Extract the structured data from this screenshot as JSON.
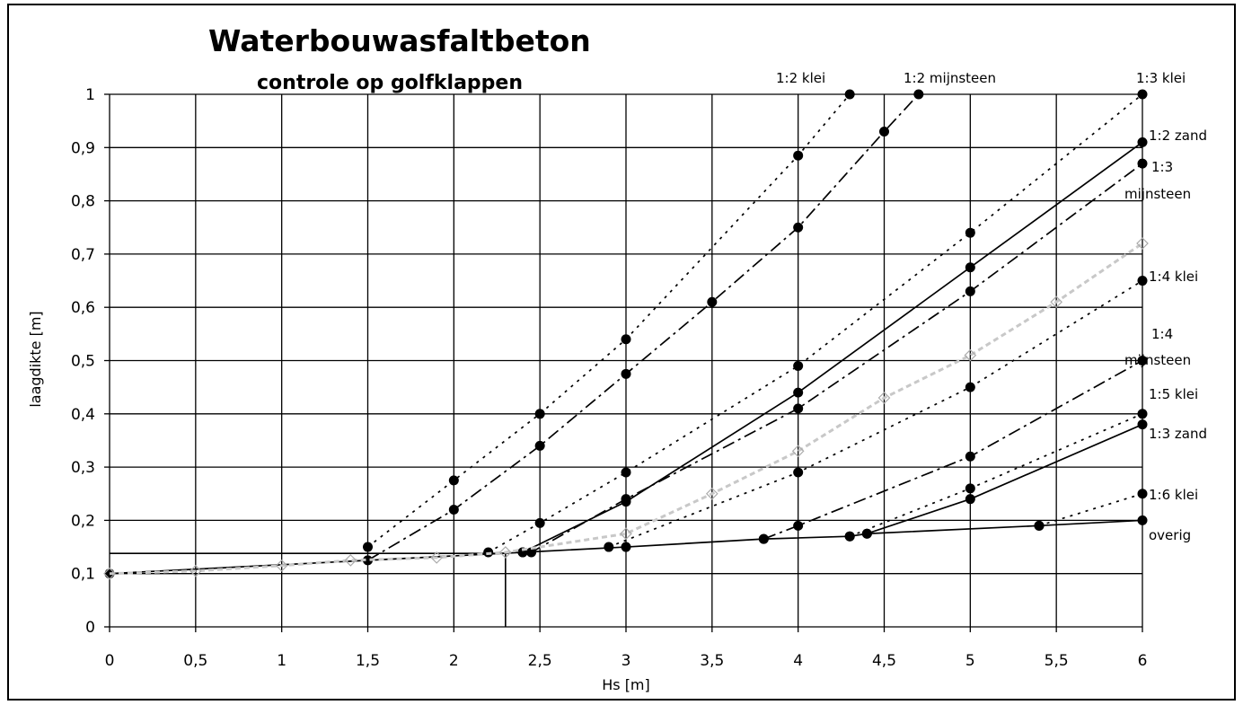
{
  "chart_data": {
    "type": "line",
    "title": "Waterbouwasfaltbeton",
    "subtitle": "controle op golfklappen",
    "xlabel": "Hs [m]",
    "ylabel": "laagdikte [m]",
    "xlim": [
      0,
      6
    ],
    "ylim": [
      0,
      1
    ],
    "x_ticks": [
      "0",
      "0,5",
      "1",
      "1,5",
      "2",
      "2,5",
      "3",
      "3,5",
      "4",
      "4,5",
      "5",
      "5,5",
      "6"
    ],
    "y_ticks": [
      "0",
      "0,1",
      "0,2",
      "0,3",
      "0,4",
      "0,5",
      "0,6",
      "0,7",
      "0,8",
      "0,9",
      "1"
    ],
    "grid": true,
    "series": [
      {
        "name": "1:2 klei",
        "style": "dotted",
        "points": [
          [
            1.5,
            0.15
          ],
          [
            2,
            0.275
          ],
          [
            2.5,
            0.4
          ],
          [
            3,
            0.54
          ],
          [
            4,
            0.885
          ],
          [
            4.3,
            1.0
          ]
        ]
      },
      {
        "name": "1:2 mijnsteen",
        "style": "dashdot",
        "points": [
          [
            1.5,
            0.125
          ],
          [
            2,
            0.22
          ],
          [
            2.5,
            0.34
          ],
          [
            3,
            0.475
          ],
          [
            3.5,
            0.61
          ],
          [
            4,
            0.75
          ],
          [
            4.5,
            0.93
          ],
          [
            4.7,
            1.0
          ]
        ]
      },
      {
        "name": "1:3 klei",
        "style": "dotted",
        "points": [
          [
            2.2,
            0.14
          ],
          [
            2.5,
            0.195
          ],
          [
            3,
            0.29
          ],
          [
            4,
            0.49
          ],
          [
            5,
            0.74
          ],
          [
            6,
            1.0
          ]
        ]
      },
      {
        "name": "1:2 zand",
        "style": "solid",
        "points": [
          [
            2.4,
            0.14
          ],
          [
            3,
            0.235
          ],
          [
            4,
            0.44
          ],
          [
            5,
            0.675
          ],
          [
            6,
            0.91
          ]
        ]
      },
      {
        "name": "1:3 mijnsteen",
        "style": "dashdot",
        "points": [
          [
            2.45,
            0.14
          ],
          [
            3,
            0.24
          ],
          [
            4,
            0.41
          ],
          [
            5,
            0.63
          ],
          [
            6,
            0.87
          ]
        ]
      },
      {
        "name": "1:4 klei",
        "style": "dotted",
        "points": [
          [
            2.9,
            0.15
          ],
          [
            4,
            0.29
          ],
          [
            5,
            0.45
          ],
          [
            6,
            0.65
          ]
        ]
      },
      {
        "name": "1:4 mijnsteen",
        "style": "dashdot",
        "points": [
          [
            3.8,
            0.165
          ],
          [
            4,
            0.19
          ],
          [
            5,
            0.32
          ],
          [
            6,
            0.5
          ]
        ]
      },
      {
        "name": "1:5 klei",
        "style": "dotted",
        "points": [
          [
            4.3,
            0.17
          ],
          [
            5,
            0.26
          ],
          [
            6,
            0.4
          ]
        ]
      },
      {
        "name": "1:3 zand",
        "style": "solid",
        "points": [
          [
            4.4,
            0.175
          ],
          [
            5,
            0.24
          ],
          [
            6,
            0.38
          ]
        ]
      },
      {
        "name": "1:6 klei",
        "style": "dotted",
        "points": [
          [
            5.4,
            0.19
          ],
          [
            6,
            0.25
          ]
        ]
      },
      {
        "name": "overig",
        "style": "solid",
        "points": [
          [
            0,
            0.1
          ],
          [
            2.4,
            0.14
          ],
          [
            3,
            0.15
          ],
          [
            3.8,
            0.165
          ],
          [
            4.3,
            0.17
          ],
          [
            4.4,
            0.175
          ],
          [
            5.4,
            0.19
          ],
          [
            6,
            0.2
          ]
        ]
      },
      {
        "name": "",
        "style": "faint-diamond",
        "points": [
          [
            0,
            0.1
          ],
          [
            0.5,
            0.105
          ],
          [
            1,
            0.115
          ],
          [
            1.4,
            0.125
          ],
          [
            1.9,
            0.13
          ],
          [
            2.3,
            0.14
          ],
          [
            3,
            0.175
          ],
          [
            3.5,
            0.25
          ],
          [
            4,
            0.33
          ],
          [
            4.5,
            0.43
          ],
          [
            5,
            0.51
          ],
          [
            5.5,
            0.61
          ],
          [
            6,
            0.72
          ]
        ]
      }
    ],
    "annotation_lines": [
      {
        "points": [
          [
            0,
            0.138
          ],
          [
            2.3,
            0.138
          ]
        ]
      },
      {
        "points": [
          [
            2.3,
            0
          ],
          [
            2.3,
            0.138
          ]
        ]
      }
    ]
  }
}
